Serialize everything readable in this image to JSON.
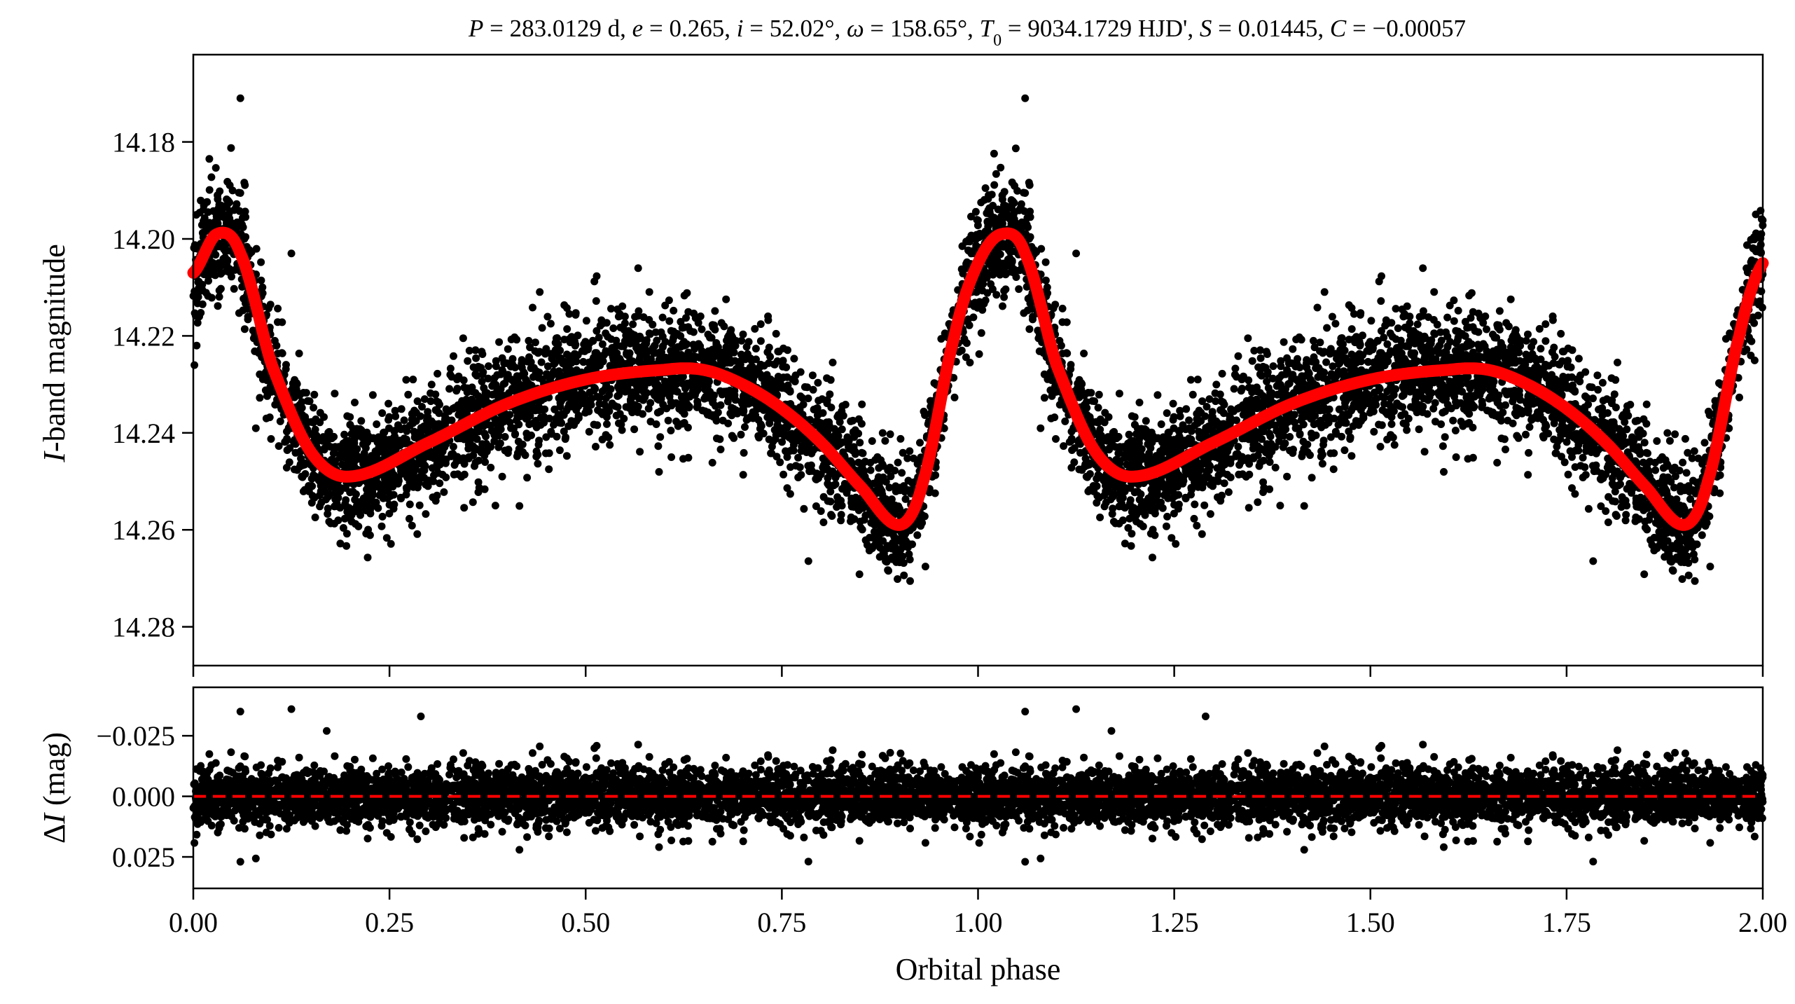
{
  "title": "P = 283.0129 d, e = 0.265, i = 52.02°, ω = 158.65°, T0 = 9034.1729 HJD', S = 0.01445, C = −0.00057",
  "title_parts": {
    "P_sym": "P",
    "P_val": " = 283.0129 d, ",
    "e_sym": "e",
    "e_val": " = 0.265, ",
    "i_sym": "i",
    "i_val": " = 52.02°, ",
    "w_sym": "ω",
    "w_val": " = 158.65°, ",
    "T_sym": "T",
    "T_sub": "0",
    "T_val": " = 9034.1729 HJD', ",
    "S_sym": "S",
    "S_val": " = 0.01445, ",
    "C_sym": "C",
    "C_val": " = −0.00057"
  },
  "chart_data": [
    {
      "panel": "top",
      "type": "scatter",
      "ylabel_italic": "I",
      "ylabel_rest": "-band magnitude",
      "ylim": [
        14.288,
        14.162
      ],
      "y_inverted": true,
      "xlim": [
        0.0,
        2.0
      ],
      "yticks": [
        14.18,
        14.2,
        14.22,
        14.24,
        14.26,
        14.28
      ],
      "ytick_labels": [
        "14.18",
        "14.20",
        "14.22",
        "14.24",
        "14.26",
        "14.28"
      ],
      "xticks": [
        0.0,
        0.25,
        0.5,
        0.75,
        1.0,
        1.25,
        1.5,
        1.75,
        2.0
      ],
      "grid": false,
      "series": [
        {
          "kind": "points",
          "color": "#000000",
          "approx_count": 7000,
          "scatter_sigma_mag": 0.006
        },
        {
          "kind": "model-curve",
          "color": "#ff0000",
          "x": [
            0.0,
            0.03,
            0.06,
            0.1,
            0.15,
            0.2,
            0.3,
            0.4,
            0.5,
            0.6,
            0.65,
            0.7,
            0.75,
            0.8,
            0.85,
            0.9,
            0.93,
            0.97,
            1.0,
            1.03,
            1.06,
            1.1,
            1.15,
            1.2,
            1.3,
            1.4,
            1.5,
            1.6,
            1.65,
            1.7,
            1.75,
            1.8,
            1.85,
            1.9,
            1.93,
            1.97,
            2.0
          ],
          "y": [
            14.207,
            14.199,
            14.203,
            14.226,
            14.244,
            14.249,
            14.242,
            14.234,
            14.229,
            14.227,
            14.227,
            14.23,
            14.235,
            14.242,
            14.251,
            14.259,
            14.25,
            14.22,
            14.205,
            14.199,
            14.203,
            14.226,
            14.244,
            14.249,
            14.242,
            14.234,
            14.229,
            14.227,
            14.227,
            14.23,
            14.235,
            14.242,
            14.251,
            14.259,
            14.25,
            14.22,
            14.205
          ]
        }
      ],
      "outliers": [
        {
          "x": 0.06,
          "y": 14.171
        },
        {
          "x": 1.06,
          "y": 14.171
        },
        {
          "x": 0.125,
          "y": 14.203
        },
        {
          "x": 1.125,
          "y": 14.203
        },
        {
          "x": 0.385,
          "y": 14.255
        },
        {
          "x": 1.385,
          "y": 14.255
        },
        {
          "x": 0.28,
          "y": 14.229
        },
        {
          "x": 1.28,
          "y": 14.229
        }
      ]
    },
    {
      "panel": "bottom",
      "type": "scatter",
      "xlabel": "Orbital phase",
      "ylabel_greek": "Δ",
      "ylabel_italic": "I",
      "ylabel_rest": " (mag)",
      "ylim": [
        0.038,
        -0.045
      ],
      "y_inverted": true,
      "xlim": [
        0.0,
        2.0
      ],
      "yticks": [
        -0.025,
        0.0,
        0.025
      ],
      "ytick_labels": [
        "−0.025",
        "0.000",
        "0.025"
      ],
      "xticks": [
        0.0,
        0.25,
        0.5,
        0.75,
        1.0,
        1.25,
        1.5,
        1.75,
        2.0
      ],
      "xtick_labels": [
        "0.00",
        "0.25",
        "0.50",
        "0.75",
        "1.00",
        "1.25",
        "1.50",
        "1.75",
        "2.00"
      ],
      "grid": false,
      "series": [
        {
          "kind": "points",
          "color": "#000000",
          "approx_count": 7000,
          "scatter_sigma_mag": 0.006
        },
        {
          "kind": "zero-line",
          "color": "#ff0000",
          "style": "dashed",
          "y": 0.0
        }
      ],
      "outliers": [
        {
          "x": 0.06,
          "y": -0.035
        },
        {
          "x": 1.06,
          "y": -0.035
        },
        {
          "x": 0.125,
          "y": -0.036
        },
        {
          "x": 1.125,
          "y": -0.036
        },
        {
          "x": 0.29,
          "y": -0.033
        },
        {
          "x": 1.29,
          "y": -0.033
        },
        {
          "x": 0.17,
          "y": -0.027
        },
        {
          "x": 1.17,
          "y": -0.027
        },
        {
          "x": 0.06,
          "y": 0.027
        },
        {
          "x": 1.06,
          "y": 0.027
        }
      ]
    }
  ]
}
